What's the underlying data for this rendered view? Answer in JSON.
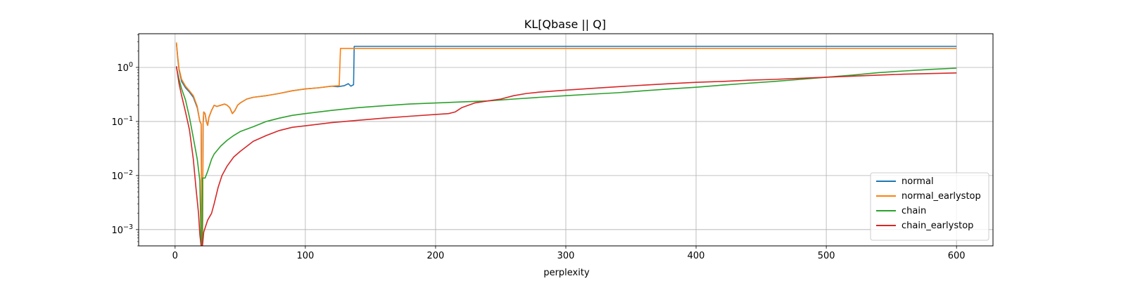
{
  "chart_data": {
    "type": "line",
    "title": "KL[Qbase || Q]",
    "xlabel": "perplexity",
    "ylabel": "",
    "xlim": [
      -28,
      628
    ],
    "ylim": [
      0.0005,
      4.2
    ],
    "yscale": "log",
    "grid": true,
    "legend_position": "lower-right",
    "x_ticks": [
      0,
      100,
      200,
      300,
      400,
      500,
      600
    ],
    "x_tick_labels": [
      "0",
      "100",
      "200",
      "300",
      "400",
      "500",
      "600"
    ],
    "y_ticks": [
      0.001,
      0.01,
      0.1,
      1
    ],
    "y_tick_labels": [
      {
        "base": "10",
        "exp": "−3"
      },
      {
        "base": "10",
        "exp": "−2"
      },
      {
        "base": "10",
        "exp": "−1"
      },
      {
        "base": "10",
        "exp": "0"
      }
    ],
    "series": [
      {
        "name": "normal",
        "color": "#1f77b4",
        "points": [
          [
            1,
            2.8
          ],
          [
            2,
            1.5
          ],
          [
            3,
            0.9
          ],
          [
            5,
            0.55
          ],
          [
            8,
            0.42
          ],
          [
            11,
            0.35
          ],
          [
            14,
            0.28
          ],
          [
            17,
            0.18
          ],
          [
            19,
            0.1
          ],
          [
            20,
            0.09
          ],
          [
            20.5,
            0.0005
          ],
          [
            21,
            0.0005
          ],
          [
            21.5,
            0.09
          ],
          [
            22,
            0.15
          ],
          [
            23,
            0.14
          ],
          [
            24,
            0.1
          ],
          [
            25,
            0.085
          ],
          [
            26,
            0.12
          ],
          [
            28,
            0.16
          ],
          [
            30,
            0.2
          ],
          [
            32,
            0.19
          ],
          [
            35,
            0.2
          ],
          [
            38,
            0.21
          ],
          [
            40,
            0.2
          ],
          [
            42,
            0.18
          ],
          [
            44,
            0.14
          ],
          [
            46,
            0.16
          ],
          [
            48,
            0.2
          ],
          [
            50,
            0.22
          ],
          [
            55,
            0.26
          ],
          [
            60,
            0.28
          ],
          [
            70,
            0.3
          ],
          [
            80,
            0.33
          ],
          [
            90,
            0.37
          ],
          [
            100,
            0.4
          ],
          [
            110,
            0.42
          ],
          [
            120,
            0.45
          ],
          [
            125,
            0.44
          ],
          [
            130,
            0.46
          ],
          [
            133,
            0.5
          ],
          [
            135,
            0.45
          ],
          [
            137,
            0.48
          ],
          [
            137.5,
            2.45
          ],
          [
            140,
            2.45
          ],
          [
            600,
            2.45
          ]
        ]
      },
      {
        "name": "normal_earlystop",
        "color": "#ff7f0e",
        "points": [
          [
            1,
            2.9
          ],
          [
            2,
            1.6
          ],
          [
            3,
            0.95
          ],
          [
            5,
            0.6
          ],
          [
            8,
            0.45
          ],
          [
            11,
            0.37
          ],
          [
            14,
            0.3
          ],
          [
            17,
            0.19
          ],
          [
            19,
            0.1
          ],
          [
            20,
            0.09
          ],
          [
            20.5,
            0.0005
          ],
          [
            21,
            0.0005
          ],
          [
            21.5,
            0.09
          ],
          [
            22,
            0.15
          ],
          [
            23,
            0.14
          ],
          [
            24,
            0.1
          ],
          [
            25,
            0.085
          ],
          [
            26,
            0.12
          ],
          [
            28,
            0.16
          ],
          [
            30,
            0.2
          ],
          [
            32,
            0.19
          ],
          [
            35,
            0.2
          ],
          [
            38,
            0.21
          ],
          [
            40,
            0.2
          ],
          [
            42,
            0.18
          ],
          [
            44,
            0.14
          ],
          [
            46,
            0.16
          ],
          [
            48,
            0.2
          ],
          [
            50,
            0.22
          ],
          [
            55,
            0.26
          ],
          [
            60,
            0.28
          ],
          [
            70,
            0.3
          ],
          [
            80,
            0.33
          ],
          [
            90,
            0.37
          ],
          [
            100,
            0.4
          ],
          [
            110,
            0.42
          ],
          [
            120,
            0.45
          ],
          [
            126,
            0.46
          ],
          [
            127,
            2.25
          ],
          [
            130,
            2.25
          ],
          [
            600,
            2.25
          ]
        ]
      },
      {
        "name": "chain",
        "color": "#2ca02c",
        "points": [
          [
            1,
            1.0
          ],
          [
            3,
            0.6
          ],
          [
            5,
            0.4
          ],
          [
            8,
            0.25
          ],
          [
            11,
            0.12
          ],
          [
            14,
            0.05
          ],
          [
            17,
            0.02
          ],
          [
            19,
            0.008
          ],
          [
            20,
            0.0005
          ],
          [
            20.8,
            0.0005
          ],
          [
            21,
            0.009
          ],
          [
            23,
            0.009
          ],
          [
            25,
            0.012
          ],
          [
            28,
            0.02
          ],
          [
            30,
            0.025
          ],
          [
            35,
            0.035
          ],
          [
            40,
            0.045
          ],
          [
            45,
            0.055
          ],
          [
            50,
            0.065
          ],
          [
            60,
            0.08
          ],
          [
            70,
            0.1
          ],
          [
            80,
            0.115
          ],
          [
            90,
            0.13
          ],
          [
            100,
            0.14
          ],
          [
            120,
            0.16
          ],
          [
            140,
            0.18
          ],
          [
            160,
            0.195
          ],
          [
            180,
            0.21
          ],
          [
            200,
            0.22
          ],
          [
            220,
            0.23
          ],
          [
            240,
            0.24
          ],
          [
            260,
            0.26
          ],
          [
            280,
            0.28
          ],
          [
            300,
            0.3
          ],
          [
            320,
            0.32
          ],
          [
            340,
            0.34
          ],
          [
            360,
            0.37
          ],
          [
            380,
            0.4
          ],
          [
            400,
            0.43
          ],
          [
            420,
            0.47
          ],
          [
            440,
            0.51
          ],
          [
            460,
            0.55
          ],
          [
            480,
            0.6
          ],
          [
            500,
            0.66
          ],
          [
            520,
            0.72
          ],
          [
            540,
            0.8
          ],
          [
            560,
            0.86
          ],
          [
            580,
            0.92
          ],
          [
            600,
            0.97
          ]
        ]
      },
      {
        "name": "chain_earlystop",
        "color": "#d62728",
        "points": [
          [
            1,
            1.05
          ],
          [
            3,
            0.5
          ],
          [
            5,
            0.3
          ],
          [
            8,
            0.15
          ],
          [
            11,
            0.07
          ],
          [
            14,
            0.02
          ],
          [
            16,
            0.006
          ],
          [
            18,
            0.002
          ],
          [
            19,
            0.0008
          ],
          [
            20,
            0.0005
          ],
          [
            21,
            0.0005
          ],
          [
            22,
            0.0009
          ],
          [
            25,
            0.0015
          ],
          [
            28,
            0.002
          ],
          [
            30,
            0.003
          ],
          [
            33,
            0.006
          ],
          [
            36,
            0.01
          ],
          [
            40,
            0.015
          ],
          [
            45,
            0.022
          ],
          [
            50,
            0.028
          ],
          [
            60,
            0.043
          ],
          [
            70,
            0.055
          ],
          [
            80,
            0.068
          ],
          [
            90,
            0.078
          ],
          [
            100,
            0.083
          ],
          [
            120,
            0.095
          ],
          [
            140,
            0.105
          ],
          [
            160,
            0.115
          ],
          [
            180,
            0.125
          ],
          [
            200,
            0.135
          ],
          [
            210,
            0.14
          ],
          [
            215,
            0.15
          ],
          [
            220,
            0.18
          ],
          [
            230,
            0.22
          ],
          [
            240,
            0.24
          ],
          [
            250,
            0.26
          ],
          [
            260,
            0.3
          ],
          [
            270,
            0.33
          ],
          [
            280,
            0.35
          ],
          [
            300,
            0.38
          ],
          [
            320,
            0.41
          ],
          [
            340,
            0.44
          ],
          [
            360,
            0.47
          ],
          [
            380,
            0.5
          ],
          [
            400,
            0.53
          ],
          [
            420,
            0.55
          ],
          [
            440,
            0.58
          ],
          [
            460,
            0.6
          ],
          [
            480,
            0.63
          ],
          [
            500,
            0.66
          ],
          [
            520,
            0.69
          ],
          [
            540,
            0.72
          ],
          [
            560,
            0.75
          ],
          [
            580,
            0.77
          ],
          [
            600,
            0.79
          ]
        ]
      }
    ]
  }
}
